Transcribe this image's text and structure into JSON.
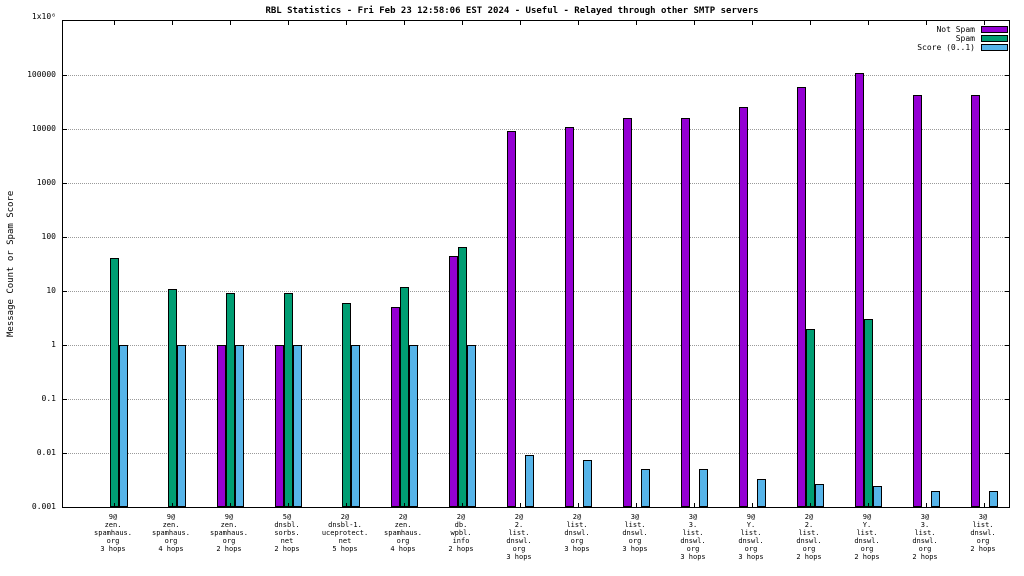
{
  "chart_data": {
    "type": "bar",
    "title": "RBL Statistics - Fri Feb 23 12:58:06 EST 2024 - Useful - Relayed through other SMTP servers",
    "ylabel": "Message Count or Spam Score",
    "y_top_label": "1x10⁶",
    "y_scale": "log10",
    "ylim": [
      0.001,
      1000000
    ],
    "grid": true,
    "legend_position": "top-right",
    "yticks": [
      {
        "v": 100000,
        "label": "100000"
      },
      {
        "v": 10000,
        "label": "10000"
      },
      {
        "v": 1000,
        "label": "1000"
      },
      {
        "v": 100,
        "label": "100"
      },
      {
        "v": 10,
        "label": "10"
      },
      {
        "v": 1,
        "label": "1"
      },
      {
        "v": 0.1,
        "label": "0.1"
      },
      {
        "v": 0.01,
        "label": "0.01"
      },
      {
        "v": 0.001,
        "label": "0.001"
      }
    ],
    "categories": [
      "9@zen.spamhaus.org 3 hops",
      "9@zen.spamhaus.org 4 hops",
      "9@zen.spamhaus.org 2 hops",
      "5@dnsbl.sorbs.net 2 hops",
      "2@dnsbl-1.uceprotect.net 5 hops",
      "2@zen.spamhaus.org 4 hops",
      "2@db.wpbl.info 2 hops",
      "2@2.list.dnswl.org 3 hops",
      "2@list.dnswl.org 3 hops",
      "3@list.dnswl.org 3 hops",
      "3@3.list.dnswl.org 3 hops",
      "9@Y.list.dnswl.org 3 hops",
      "2@2.list.dnswl.org 2 hops",
      "9@Y.list.dnswl.org 2 hops",
      "3@3.list.dnswl.org 2 hops",
      "3@list.dnswl.org 2 hops"
    ],
    "category_label_lines": [
      [
        "9@",
        "zen.",
        "spamhaus.",
        "org",
        "3 hops"
      ],
      [
        "9@",
        "zen.",
        "spamhaus.",
        "org",
        "4 hops"
      ],
      [
        "9@",
        "zen.",
        "spamhaus.",
        "org",
        "2 hops"
      ],
      [
        "5@",
        "dnsbl.",
        "sorbs.",
        "net",
        "2 hops"
      ],
      [
        "2@",
        "dnsbl-1.",
        "uceprotect.",
        "net",
        "5 hops"
      ],
      [
        "2@",
        "zen.",
        "spamhaus.",
        "org",
        "4 hops"
      ],
      [
        "2@",
        "db.",
        "wpbl.",
        "info",
        "2 hops"
      ],
      [
        "2@",
        "2.",
        "list.",
        "dnswl.",
        "org",
        "3 hops"
      ],
      [
        "2@",
        "list.",
        "dnswl.",
        "org",
        "3 hops"
      ],
      [
        "3@",
        "list.",
        "dnswl.",
        "org",
        "3 hops"
      ],
      [
        "3@",
        "3.",
        "list.",
        "dnswl.",
        "org",
        "3 hops"
      ],
      [
        "9@",
        "Y.",
        "list.",
        "dnswl.",
        "org",
        "3 hops"
      ],
      [
        "2@",
        "2.",
        "list.",
        "dnswl.",
        "org",
        "2 hops"
      ],
      [
        "9@",
        "Y.",
        "list.",
        "dnswl.",
        "org",
        "2 hops"
      ],
      [
        "3@",
        "3.",
        "list.",
        "dnswl.",
        "org",
        "2 hops"
      ],
      [
        "3@",
        "list.",
        "dnswl.",
        "org",
        "2 hops"
      ]
    ],
    "series": [
      {
        "name": "Not Spam",
        "color": "#9400d3",
        "values": [
          null,
          null,
          1,
          1,
          null,
          5,
          45,
          9000,
          11000,
          16000,
          16000,
          26000,
          60000,
          110000,
          43000,
          43000
        ]
      },
      {
        "name": "Spam",
        "color": "#009e73",
        "values": [
          40,
          11,
          9,
          9,
          6,
          12,
          65,
          null,
          null,
          null,
          null,
          null,
          2,
          3,
          null,
          null
        ]
      },
      {
        "name": "Score (0..1)",
        "color": "#56b4e9",
        "values": [
          1,
          1,
          1,
          1,
          1,
          1,
          1,
          0.009,
          0.0075,
          0.005,
          0.005,
          0.0033,
          0.0027,
          0.0024,
          0.002,
          0.002
        ]
      }
    ]
  }
}
